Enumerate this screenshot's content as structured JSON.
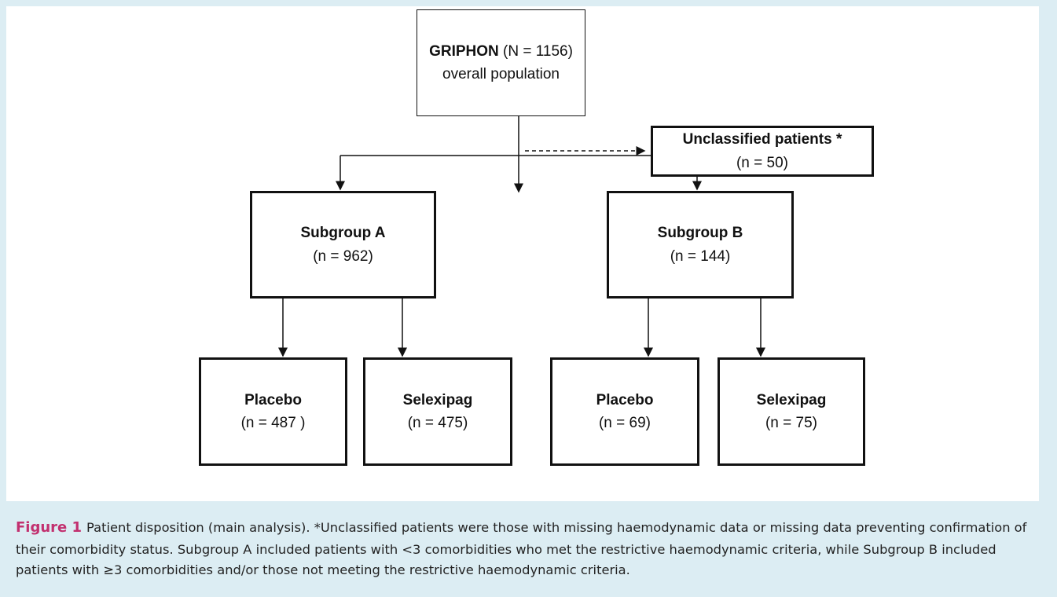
{
  "nodes": [
    {
      "bold": "GRIPHON",
      "text": "(N = 1156)",
      "sub": "overall population"
    },
    {
      "bold": "Unclassified patients *",
      "text": "(n = 50)"
    },
    {
      "bold": "Subgroup A",
      "text": "(n = 962)"
    },
    {
      "bold": "Subgroup B",
      "text": "(n = 144)"
    },
    {
      "bold": "Placebo",
      "text": "(n = 487 )"
    },
    {
      "bold": "Selexipag",
      "text": "(n = 475)"
    },
    {
      "bold": "Placebo",
      "text": "(n = 69)"
    },
    {
      "bold": "Selexipag",
      "text": "(n = 75)"
    }
  ],
  "caption": {
    "label": "Figure 1",
    "text": "Patient disposition (main analysis). *Unclassified patients were those with missing haemodynamic data or missing data preventing confirmation of their comorbidity status. Subgroup A included patients with <3 comorbidities who met the restrictive haemodynamic criteria, while Subgroup B included patients with ≥3 comorbidities and/or those not meeting the restrictive haemodynamic criteria."
  }
}
